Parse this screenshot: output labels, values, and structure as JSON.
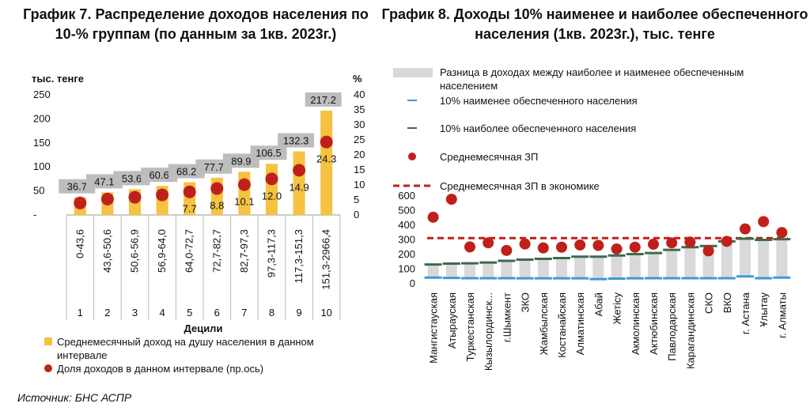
{
  "source": "Источник: БНС АСПР",
  "chart_data": [
    {
      "type": "bar",
      "title": "График 7. Распределение доходов населения по 10-% группам (по данным за 1кв. 2023г.)",
      "ylabel_left": "тыс. тенге",
      "ylabel_right": "%",
      "xlabel": "Децили",
      "yticks_left": [
        "250",
        "200",
        "150",
        "100",
        "50",
        "-"
      ],
      "yticks_right": [
        "40",
        "35",
        "30",
        "25",
        "20",
        "15",
        "10",
        "5",
        "0"
      ],
      "ylim_left": [
        0,
        250
      ],
      "ylim_right": [
        0,
        40
      ],
      "categories": [
        "1",
        "2",
        "3",
        "4",
        "5",
        "6",
        "7",
        "8",
        "9",
        "10"
      ],
      "ranges": [
        "0-43,6",
        "43,6-50,6",
        "50,6-56,9",
        "56,9-64,0",
        "64,0-72,7",
        "72,7-82,7",
        "82,7-97,3",
        "97,3-117,3",
        "117,3-151,3",
        "151,3-2966,4"
      ],
      "series": [
        {
          "name": "Среднемесячный доход на душу населения в данном интервале",
          "kind": "bar",
          "axis": "left",
          "values": [
            36.7,
            47.1,
            53.6,
            60.6,
            68.2,
            77.7,
            89.9,
            106.5,
            132.3,
            217.2
          ],
          "labels": [
            "36.7",
            "47.1",
            "53.6",
            "60.6",
            "68.2",
            "77.7",
            "89.9",
            "106.5",
            "132.3",
            "217.2"
          ],
          "color": "#F5C242"
        },
        {
          "name": "Доля доходов в данном интервале (пр.ось)",
          "kind": "scatter",
          "axis": "right",
          "values": [
            4.0,
            5.3,
            5.9,
            6.7,
            7.7,
            8.8,
            10.1,
            12.0,
            14.9,
            24.3
          ],
          "labels": [
            "",
            "",
            "",
            "",
            "7.7",
            "8.8",
            "10.1",
            "12.0",
            "14.9",
            "24.3"
          ],
          "color": "#C0201A"
        }
      ],
      "legend": [
        "Среднемесячный доход на душу населения в данном интервале",
        "Доля доходов в данном интервале (пр.ось)"
      ]
    },
    {
      "type": "bar",
      "title": "График 8. Доходы 10% наименее и наиболее обеспеченного населения (1кв. 2023г.), тыс. тенге",
      "yticks": [
        "600",
        "500",
        "400",
        "300",
        "200",
        "100",
        "0"
      ],
      "ylim": [
        0,
        600
      ],
      "categories": [
        "Мангистауская",
        "Атырауская",
        "Туркестанская",
        "Кызылординск...",
        "г.Шымкент",
        "ЗКО",
        "Жамбылская",
        "Костанайская",
        "Алматинская",
        "Абай",
        "Жетісу",
        "Акмолинская",
        "Актюбинская",
        "Павлодарская",
        "Карагандинская",
        "СКО",
        "ВКО",
        "г. Астана",
        "Ұлытау",
        "г. Алматы"
      ],
      "series": [
        {
          "name": "10% наименее обеспеченного населения",
          "values": [
            42,
            40,
            38,
            38,
            38,
            37,
            37,
            37,
            37,
            32,
            35,
            37,
            38,
            38,
            38,
            38,
            38,
            50,
            38,
            42
          ],
          "color": "#3E9AD6"
        },
        {
          "name": "10% наиболее обеспеченного населения",
          "values": [
            132,
            138,
            140,
            145,
            157,
            165,
            170,
            176,
            185,
            185,
            193,
            203,
            210,
            232,
            250,
            258,
            290,
            308,
            300,
            305
          ],
          "color": "#3B6B4C"
        },
        {
          "name": "Среднемесячная ЗП",
          "values": [
            455,
            578,
            252,
            280,
            228,
            272,
            245,
            250,
            265,
            262,
            238,
            250,
            270,
            280,
            285,
            225,
            290,
            375,
            425,
            350
          ],
          "color": "#C0201A"
        },
        {
          "name": "Среднемесячная ЗП в экономике",
          "value": 312,
          "color": "#C0201A"
        }
      ],
      "legend": [
        "Разница в доходах между наиболее и наименее обеспеченным населением",
        "10% наименее обеспеченного населения",
        "10% наиболее обеспеченного населения",
        "Среднемесячная ЗП",
        "Среднемесячная ЗП в экономике"
      ],
      "range_color": "#D9D9D9"
    }
  ]
}
